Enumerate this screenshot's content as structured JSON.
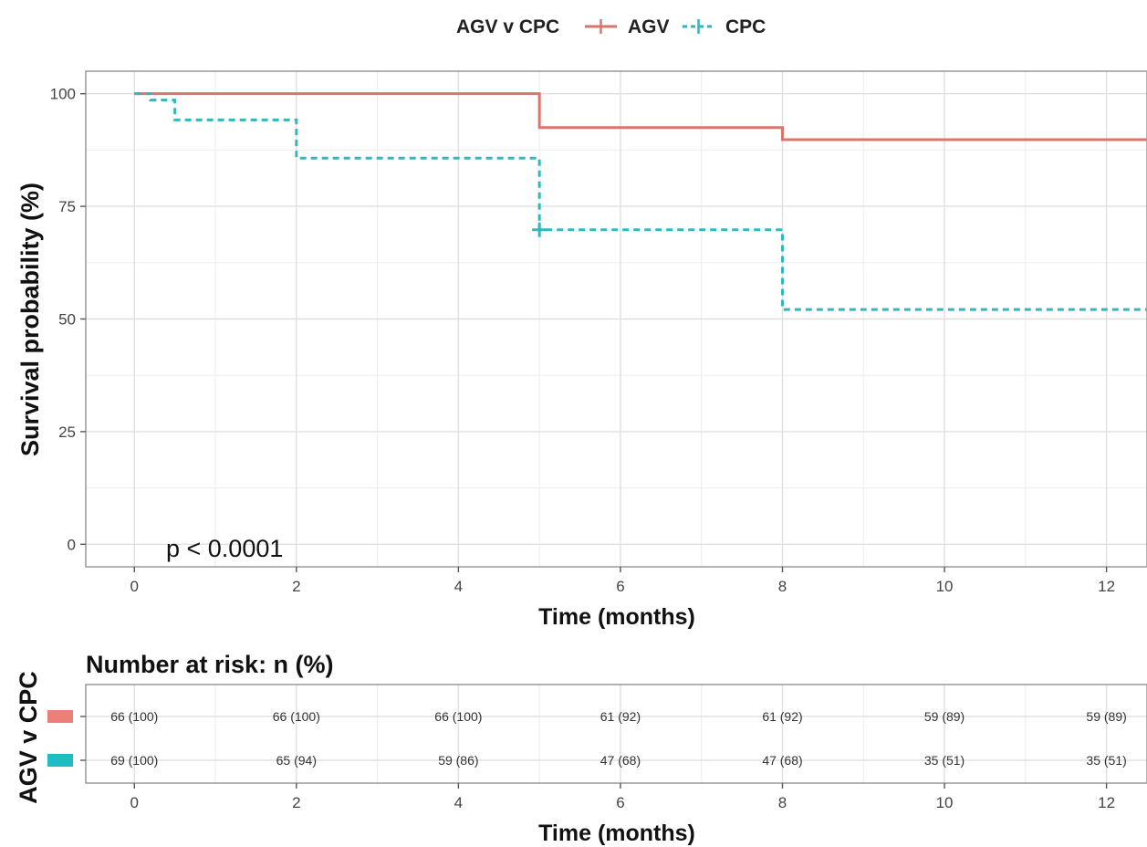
{
  "chart_data": [
    {
      "type": "line",
      "subtype": "kaplan-meier step curve",
      "legend": {
        "title": "AGV v CPC",
        "placement": "top-center"
      },
      "xlabel": "Time (months)",
      "ylabel": "Survival probability (%)",
      "xlim": [
        -0.6,
        12.5
      ],
      "ylim": [
        -5,
        105
      ],
      "x_ticks": [
        0,
        2,
        4,
        6,
        8,
        10,
        12
      ],
      "y_ticks": [
        0,
        25,
        50,
        75,
        100
      ],
      "grid": true,
      "annotation": "p < 0.0001",
      "series": [
        {
          "name": "AGV",
          "color": "#d9756d",
          "line_style": "solid",
          "steps": [
            [
              0,
              100
            ],
            [
              5,
              92.5
            ],
            [
              8,
              89.8
            ]
          ],
          "censor_marks": []
        },
        {
          "name": "CPC",
          "color": "#35b5bd",
          "line_style": "dashed",
          "steps": [
            [
              0,
              100
            ],
            [
              0.2,
              98.6
            ],
            [
              0.5,
              94.2
            ],
            [
              2,
              85.7
            ],
            [
              5,
              69.8
            ],
            [
              8,
              52.1
            ]
          ],
          "censor_marks": [
            [
              5,
              69.8
            ]
          ]
        }
      ]
    },
    {
      "type": "table",
      "title": "Number at risk: n (%)",
      "ylabel": "AGV v CPC",
      "xlabel": "Time (months)",
      "x_ticks": [
        0,
        2,
        4,
        6,
        8,
        10,
        12
      ],
      "rows": [
        {
          "name": "AGV",
          "color": "#ec8078",
          "values": [
            "66 (100)",
            "66 (100)",
            "66 (100)",
            "61 (92)",
            "61 (92)",
            "59 (89)",
            "59 (89)"
          ]
        },
        {
          "name": "CPC",
          "color": "#1fbcc4",
          "values": [
            "69 (100)",
            "65 (94)",
            "59 (86)",
            "47 (68)",
            "47 (68)",
            "35 (51)",
            "35 (51)"
          ]
        }
      ]
    }
  ]
}
